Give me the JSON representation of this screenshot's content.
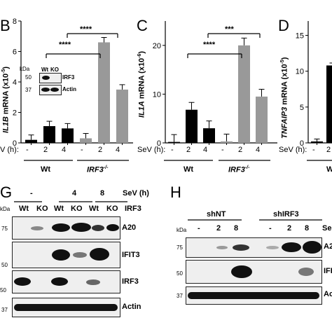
{
  "panels": {
    "B": {
      "letter": "B",
      "ylabel_gene": "IL1B",
      "ylabel_rest": " mRNA (x10",
      "ylabel_exp": "-5",
      "ylabel_end": ")",
      "yticks": [
        "0",
        "2",
        "4",
        "6",
        "8"
      ],
      "sev_label": "V (h):",
      "xticks": [
        "-",
        "2",
        "4",
        "-",
        "2",
        "4"
      ],
      "group_wt": "Wt",
      "group_ko": "IRF3",
      "group_ko_sup": "-/-",
      "sig": [
        "****",
        "****"
      ],
      "inset": {
        "kda": "kDa",
        "wt": "Wt",
        "ko": "KO",
        "m50": "50",
        "m37": "37",
        "irf3": "IRF3",
        "actin": "Actin"
      }
    },
    "C": {
      "letter": "C",
      "ylabel_gene": "IL1A",
      "ylabel_rest": " mRNA (x10",
      "ylabel_exp": "-6",
      "ylabel_end": ")",
      "yticks": [
        "0",
        "10",
        "20"
      ],
      "sev_label": "SeV (h):",
      "xticks": [
        "-",
        "2",
        "4",
        "-",
        "2",
        "4"
      ],
      "group_wt": "Wt",
      "group_ko": "IRF3",
      "group_ko_sup": "-/-",
      "sig": [
        "****",
        "***"
      ]
    },
    "D": {
      "letter": "D",
      "ylabel_gene": "TNFAIP3",
      "ylabel_rest": " mRNA (x10",
      "ylabel_exp": "-5",
      "ylabel_end": ")",
      "yticks": [
        "0",
        "5",
        "10",
        "15"
      ],
      "sev_label": "SeV (h):",
      "xticks": [
        "-",
        "2"
      ],
      "group_wt": "W"
    },
    "G": {
      "letter": "G",
      "time_labels": [
        "-",
        "4",
        "8"
      ],
      "sev_label": "SeV (h)",
      "lanes": [
        "Wt",
        "KO",
        "Wt",
        "KO",
        "Wt",
        "KO"
      ],
      "irf3_label": "IRF3",
      "kda": "kDa",
      "blots": [
        {
          "marker": "75",
          "label": "A20"
        },
        {
          "marker": "50",
          "label": "IFIT3"
        },
        {
          "marker": "50",
          "label": "IRF3"
        },
        {
          "marker": "37",
          "label": "Actin"
        }
      ]
    },
    "H": {
      "letter": "H",
      "groups": [
        "shNT",
        "shIRF3"
      ],
      "lanes": [
        "-",
        "2",
        "8",
        "-",
        "2",
        "8"
      ],
      "sev_label": "Se",
      "kda": "kDa",
      "blots": [
        {
          "marker": "75",
          "label": "A2"
        },
        {
          "marker": "50",
          "label": "IFI"
        },
        {
          "marker": "37",
          "label": "Ac"
        }
      ]
    }
  },
  "chart_data": [
    {
      "type": "bar",
      "panel": "B",
      "ylabel": "IL1B mRNA (x10-5)",
      "ylim": [
        0,
        8
      ],
      "categories": [
        "Wt -",
        "Wt 2",
        "Wt 4",
        "IRF3-/- -",
        "IRF3-/- 2",
        "IRF3-/- 4"
      ],
      "values": [
        0.2,
        1.1,
        0.95,
        0.3,
        6.6,
        3.5
      ],
      "colors": [
        "#000000",
        "#000000",
        "#000000",
        "#999999",
        "#999999",
        "#999999"
      ]
    },
    {
      "type": "bar",
      "panel": "C",
      "ylabel": "IL1A mRNA (x10-6)",
      "ylim": [
        0,
        25
      ],
      "categories": [
        "Wt -",
        "Wt 2",
        "Wt 4",
        "IRF3-/- -",
        "IRF3-/- 2",
        "IRF3-/- 4"
      ],
      "values": [
        0.2,
        6.8,
        3.0,
        0.3,
        20.0,
        9.5
      ],
      "colors": [
        "#000000",
        "#000000",
        "#000000",
        "#999999",
        "#999999",
        "#999999"
      ]
    },
    {
      "type": "bar",
      "panel": "D",
      "ylabel": "TNFAIP3 mRNA (x10-5)",
      "ylim": [
        0,
        17
      ],
      "categories": [
        "Wt -",
        "Wt 2"
      ],
      "values": [
        0.2,
        10.8
      ],
      "colors": [
        "#000000",
        "#000000"
      ]
    }
  ]
}
